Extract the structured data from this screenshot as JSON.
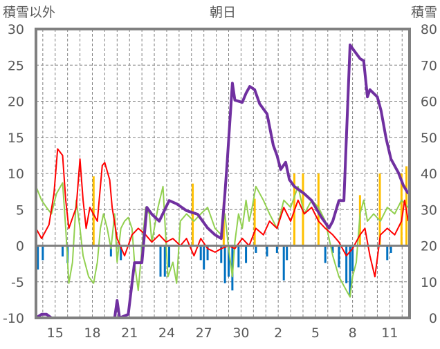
{
  "chart_data": {
    "type": "line",
    "title": "朝日",
    "ylabel_left": "積雪以外",
    "ylabel_right": "積雪",
    "ylim_left": [
      -10,
      30
    ],
    "ylim_right": [
      0,
      80
    ],
    "yticks_left": [
      -10,
      -5,
      0,
      5,
      10,
      15,
      20,
      25,
      30
    ],
    "yticks_right": [
      0,
      10,
      20,
      30,
      40,
      50,
      60,
      70,
      80
    ],
    "xlim_days": [
      13.45,
      43.6
    ],
    "xticks": [
      {
        "day": 15,
        "label": "15"
      },
      {
        "day": 18,
        "label": "18"
      },
      {
        "day": 21,
        "label": "21"
      },
      {
        "day": 24,
        "label": "24"
      },
      {
        "day": 27,
        "label": "27"
      },
      {
        "day": 30,
        "label": "30"
      },
      {
        "day": 33,
        "label": "2"
      },
      {
        "day": 36,
        "label": "5"
      },
      {
        "day": 39,
        "label": "8"
      },
      {
        "day": 42,
        "label": "11"
      }
    ],
    "grid": true,
    "colors": {
      "red": "#ff0000",
      "green": "#92d050",
      "purple": "#7030a0",
      "blue": "#0070c0",
      "orange": "#ffc000",
      "frame": "#808080"
    },
    "series": [
      {
        "name": "orange-bars",
        "kind": "bar",
        "axis": "left",
        "color": "#ffc000",
        "points": [
          [
            18.1,
            9.6
          ],
          [
            26.1,
            8.6
          ],
          [
            28.6,
            6
          ],
          [
            31.1,
            6.5
          ],
          [
            34.3,
            10
          ],
          [
            35.0,
            10
          ],
          [
            36.25,
            10
          ],
          [
            39.6,
            7
          ],
          [
            41.2,
            10
          ],
          [
            42.95,
            10
          ],
          [
            43.35,
            11
          ]
        ]
      },
      {
        "name": "blue-bars",
        "kind": "bar",
        "axis": "left",
        "color": "#0070c0",
        "points": [
          [
            13.6,
            -3.3
          ],
          [
            14.0,
            -2.0
          ],
          [
            15.6,
            -1.5
          ],
          [
            16.0,
            -2.4
          ],
          [
            19.5,
            -1.5
          ],
          [
            20.3,
            -2.0
          ],
          [
            22.0,
            -1.5
          ],
          [
            23.5,
            -4.3
          ],
          [
            23.85,
            -4.3
          ],
          [
            24.2,
            -3.0
          ],
          [
            26.75,
            -2.0
          ],
          [
            27.0,
            -3.3
          ],
          [
            27.3,
            -2.0
          ],
          [
            28.4,
            -2.4
          ],
          [
            28.7,
            -5.2
          ],
          [
            29.0,
            -4.3
          ],
          [
            29.3,
            -6.2
          ],
          [
            29.8,
            -3.0
          ],
          [
            30.4,
            -2.4
          ],
          [
            31.2,
            -1.0
          ],
          [
            32.1,
            -1.5
          ],
          [
            32.9,
            -1.0
          ],
          [
            33.45,
            -4.8
          ],
          [
            33.7,
            -2.0
          ],
          [
            36.8,
            -2.4
          ],
          [
            37.4,
            -1.0
          ],
          [
            37.9,
            -3.0
          ],
          [
            38.5,
            -5.2
          ],
          [
            38.8,
            -7.0
          ],
          [
            39.0,
            -3.5
          ],
          [
            41.8,
            -2.0
          ],
          [
            42.1,
            -1.0
          ]
        ]
      },
      {
        "name": "green-line",
        "kind": "line",
        "axis": "left",
        "color": "#92d050",
        "points": [
          [
            13.45,
            8.2
          ],
          [
            13.9,
            6.3
          ],
          [
            14.3,
            5.3
          ],
          [
            14.7,
            4.4
          ],
          [
            15.1,
            7.2
          ],
          [
            15.6,
            8.7
          ],
          [
            15.85,
            2.4
          ],
          [
            16.1,
            -5.2
          ],
          [
            16.4,
            -2.3
          ],
          [
            16.7,
            6.3
          ],
          [
            17.0,
            2.4
          ],
          [
            17.25,
            -1.4
          ],
          [
            17.7,
            -4.3
          ],
          [
            18.1,
            -5.2
          ],
          [
            18.4,
            -2.3
          ],
          [
            18.65,
            2.4
          ],
          [
            18.9,
            4.4
          ],
          [
            19.2,
            2.4
          ],
          [
            19.5,
            -0.4
          ],
          [
            19.8,
            4.4
          ],
          [
            20.0,
            -2.3
          ],
          [
            20.3,
            2.4
          ],
          [
            20.6,
            3.4
          ],
          [
            20.9,
            3.9
          ],
          [
            21.2,
            2.4
          ],
          [
            21.4,
            -2.3
          ],
          [
            21.7,
            -6.2
          ],
          [
            22.0,
            -0.4
          ],
          [
            22.3,
            5.3
          ],
          [
            22.6,
            4.4
          ],
          [
            22.8,
            0.5
          ],
          [
            23.3,
            5.3
          ],
          [
            23.7,
            8.2
          ],
          [
            24.1,
            -4.3
          ],
          [
            24.5,
            -2.3
          ],
          [
            24.8,
            -5.2
          ],
          [
            25.1,
            3.4
          ],
          [
            25.6,
            4.4
          ],
          [
            26.2,
            3.4
          ],
          [
            26.75,
            4.4
          ],
          [
            27.3,
            5.3
          ],
          [
            27.9,
            2.4
          ],
          [
            28.4,
            1.5
          ],
          [
            28.7,
            4.4
          ],
          [
            29.0,
            -0.4
          ],
          [
            29.3,
            -4.3
          ],
          [
            29.5,
            0.5
          ],
          [
            29.8,
            4.4
          ],
          [
            30.1,
            2.4
          ],
          [
            30.4,
            6.3
          ],
          [
            30.65,
            3.4
          ],
          [
            30.9,
            5.3
          ],
          [
            31.2,
            8.2
          ],
          [
            31.8,
            6.3
          ],
          [
            32.3,
            4.4
          ],
          [
            32.9,
            2.4
          ],
          [
            33.45,
            6.3
          ],
          [
            34.0,
            5.3
          ],
          [
            34.6,
            8.2
          ],
          [
            35.1,
            4.4
          ],
          [
            35.7,
            6.3
          ],
          [
            36.25,
            5.3
          ],
          [
            36.8,
            3.4
          ],
          [
            37.4,
            -1.4
          ],
          [
            37.9,
            -4.3
          ],
          [
            38.5,
            -6.2
          ],
          [
            38.8,
            -7.1
          ],
          [
            39.0,
            -4.3
          ],
          [
            39.3,
            -2.3
          ],
          [
            39.6,
            4.4
          ],
          [
            39.9,
            6.3
          ],
          [
            40.2,
            3.4
          ],
          [
            40.7,
            4.4
          ],
          [
            41.25,
            3.4
          ],
          [
            41.8,
            5.3
          ],
          [
            42.4,
            4.4
          ],
          [
            42.95,
            6.3
          ],
          [
            43.5,
            5.3
          ]
        ]
      },
      {
        "name": "red-line",
        "kind": "line",
        "axis": "left",
        "color": "#ff0000",
        "points": [
          [
            13.45,
            2.4
          ],
          [
            13.9,
            1.0
          ],
          [
            14.5,
            2.9
          ],
          [
            14.9,
            7.2
          ],
          [
            15.2,
            13.4
          ],
          [
            15.6,
            12.5
          ],
          [
            15.85,
            6.3
          ],
          [
            16.1,
            2.4
          ],
          [
            16.7,
            5.3
          ],
          [
            17.0,
            12.0
          ],
          [
            17.25,
            6.3
          ],
          [
            17.5,
            2.4
          ],
          [
            17.8,
            5.3
          ],
          [
            18.4,
            3.4
          ],
          [
            18.8,
            11.1
          ],
          [
            19.0,
            11.5
          ],
          [
            19.4,
            9.1
          ],
          [
            19.6,
            5.3
          ],
          [
            20.0,
            1.0
          ],
          [
            20.6,
            -1.4
          ],
          [
            21.2,
            1.5
          ],
          [
            21.7,
            2.4
          ],
          [
            22.3,
            1.5
          ],
          [
            22.8,
            0.5
          ],
          [
            23.4,
            1.5
          ],
          [
            23.95,
            0.5
          ],
          [
            24.5,
            1.0
          ],
          [
            25.1,
            0.0
          ],
          [
            25.6,
            1.0
          ],
          [
            26.2,
            -1.4
          ],
          [
            26.75,
            1.0
          ],
          [
            27.3,
            -0.4
          ],
          [
            27.9,
            -0.9
          ],
          [
            28.4,
            -0.4
          ],
          [
            29.0,
            0.0
          ],
          [
            29.5,
            -0.4
          ],
          [
            30.1,
            1.0
          ],
          [
            30.65,
            0.0
          ],
          [
            31.2,
            2.4
          ],
          [
            31.8,
            1.5
          ],
          [
            32.3,
            3.4
          ],
          [
            32.9,
            2.4
          ],
          [
            33.45,
            5.3
          ],
          [
            34.0,
            3.4
          ],
          [
            34.6,
            6.3
          ],
          [
            35.1,
            4.4
          ],
          [
            35.7,
            5.3
          ],
          [
            36.25,
            3.4
          ],
          [
            36.8,
            2.4
          ],
          [
            37.4,
            1.5
          ],
          [
            37.9,
            0.5
          ],
          [
            38.5,
            -1.4
          ],
          [
            39.0,
            -0.4
          ],
          [
            39.6,
            1.5
          ],
          [
            40.0,
            2.4
          ],
          [
            40.4,
            -1.4
          ],
          [
            40.8,
            -4.3
          ],
          [
            41.25,
            1.5
          ],
          [
            41.8,
            2.4
          ],
          [
            42.4,
            1.5
          ],
          [
            42.95,
            3.4
          ],
          [
            43.2,
            6.3
          ],
          [
            43.5,
            3.4
          ]
        ]
      },
      {
        "name": "snow-depth",
        "kind": "line",
        "axis": "right",
        "color": "#7030a0",
        "points": [
          [
            13.45,
            0
          ],
          [
            13.9,
            1
          ],
          [
            14.3,
            1
          ],
          [
            14.7,
            0
          ],
          [
            19.8,
            0
          ],
          [
            20.0,
            4.8
          ],
          [
            20.2,
            0
          ],
          [
            20.9,
            1
          ],
          [
            21.4,
            15.3
          ],
          [
            22.0,
            15.3
          ],
          [
            22.4,
            30.6
          ],
          [
            22.8,
            28.7
          ],
          [
            23.4,
            26.8
          ],
          [
            24.2,
            32.5
          ],
          [
            24.8,
            31.6
          ],
          [
            25.6,
            29.7
          ],
          [
            26.5,
            28.7
          ],
          [
            27.3,
            24.9
          ],
          [
            27.9,
            23
          ],
          [
            28.4,
            22
          ],
          [
            28.7,
            34.4
          ],
          [
            28.9,
            44
          ],
          [
            29.3,
            65
          ],
          [
            29.5,
            60.3
          ],
          [
            30.1,
            59.7
          ],
          [
            30.4,
            62.2
          ],
          [
            30.7,
            64.1
          ],
          [
            31.1,
            63.2
          ],
          [
            31.5,
            59.3
          ],
          [
            32.1,
            56.5
          ],
          [
            32.6,
            47.8
          ],
          [
            32.9,
            45
          ],
          [
            33.2,
            41.1
          ],
          [
            33.6,
            43.1
          ],
          [
            33.9,
            38.3
          ],
          [
            34.3,
            36.4
          ],
          [
            35.1,
            34.4
          ],
          [
            35.7,
            32.5
          ],
          [
            36.5,
            27.8
          ],
          [
            37.1,
            24.9
          ],
          [
            37.4,
            26.8
          ],
          [
            37.9,
            32.5
          ],
          [
            38.3,
            32.5
          ],
          [
            38.8,
            75.6
          ],
          [
            39.0,
            74.6
          ],
          [
            39.6,
            71.8
          ],
          [
            39.9,
            71.2
          ],
          [
            40.2,
            61.2
          ],
          [
            40.4,
            63.2
          ],
          [
            41.0,
            61.2
          ],
          [
            41.3,
            57.4
          ],
          [
            41.7,
            49.8
          ],
          [
            42.1,
            44
          ],
          [
            42.7,
            40.2
          ],
          [
            43.1,
            36.7
          ],
          [
            43.5,
            34.4
          ]
        ]
      }
    ]
  }
}
